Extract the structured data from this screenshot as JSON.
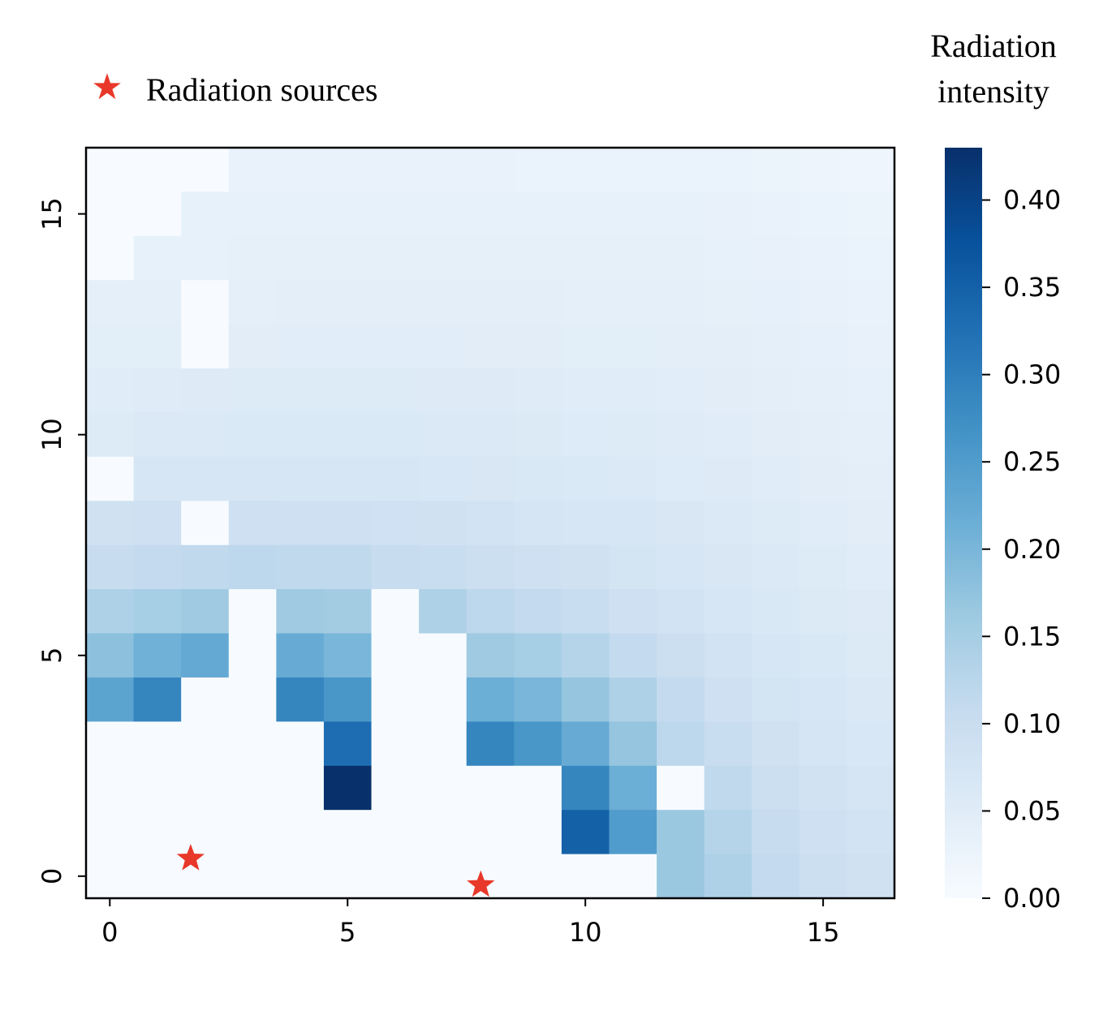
{
  "chart_data": {
    "type": "heatmap",
    "title": "",
    "xlabel": "",
    "ylabel": "",
    "xlim": [
      -0.5,
      16.5
    ],
    "ylim": [
      -0.5,
      16.5
    ],
    "x_ticks": [
      0,
      5,
      10,
      15
    ],
    "y_ticks": [
      0,
      5,
      10,
      15
    ],
    "colormap": "Blues",
    "colorbar": {
      "title_line1": "Radiation",
      "title_line2": "intensity",
      "range": [
        0,
        0.43
      ],
      "ticks": [
        0.0,
        0.05,
        0.1,
        0.15,
        0.2,
        0.25,
        0.3,
        0.35,
        0.4
      ],
      "tick_labels": [
        "0.00",
        "0.05",
        "0.10",
        "0.15",
        "0.20",
        "0.25",
        "0.30",
        "0.35",
        "0.40"
      ]
    },
    "legend": {
      "label": "Radiation sources",
      "marker": "red-star",
      "placement": "top-left, outside plot"
    },
    "sources": [
      {
        "x": 1.7,
        "y": 0.4
      },
      {
        "x": 7.8,
        "y": -0.2
      }
    ],
    "grid_rows_y_descending": [
      {
        "y": 16,
        "values": [
          0.0,
          0.0,
          0.0,
          0.03,
          0.03,
          0.03,
          0.03,
          0.03,
          0.03,
          0.028,
          0.028,
          0.028,
          0.028,
          0.028,
          0.025,
          0.022,
          0.02
        ]
      },
      {
        "y": 15,
        "values": [
          0.0,
          0.0,
          0.035,
          0.035,
          0.035,
          0.035,
          0.035,
          0.035,
          0.035,
          0.035,
          0.035,
          0.035,
          0.035,
          0.033,
          0.03,
          0.027,
          0.025
        ]
      },
      {
        "y": 14,
        "values": [
          0.0,
          0.035,
          0.035,
          0.037,
          0.037,
          0.037,
          0.037,
          0.037,
          0.037,
          0.037,
          0.037,
          0.037,
          0.037,
          0.035,
          0.033,
          0.03,
          0.027
        ]
      },
      {
        "y": 13,
        "values": [
          0.04,
          0.04,
          0.0,
          0.04,
          0.042,
          0.042,
          0.042,
          0.042,
          0.042,
          0.042,
          0.04,
          0.04,
          0.04,
          0.038,
          0.036,
          0.033,
          0.03
        ]
      },
      {
        "y": 12,
        "values": [
          0.045,
          0.045,
          0.0,
          0.046,
          0.047,
          0.047,
          0.047,
          0.047,
          0.046,
          0.046,
          0.045,
          0.045,
          0.044,
          0.042,
          0.04,
          0.036,
          0.033
        ]
      },
      {
        "y": 11,
        "values": [
          0.05,
          0.052,
          0.054,
          0.055,
          0.055,
          0.055,
          0.055,
          0.054,
          0.054,
          0.052,
          0.05,
          0.05,
          0.048,
          0.046,
          0.043,
          0.04,
          0.036
        ]
      },
      {
        "y": 10,
        "values": [
          0.055,
          0.06,
          0.06,
          0.062,
          0.062,
          0.062,
          0.062,
          0.06,
          0.06,
          0.058,
          0.056,
          0.055,
          0.052,
          0.049,
          0.046,
          0.043,
          0.04
        ]
      },
      {
        "y": 9,
        "values": [
          0.0,
          0.07,
          0.07,
          0.07,
          0.072,
          0.072,
          0.072,
          0.068,
          0.066,
          0.064,
          0.062,
          0.06,
          0.057,
          0.053,
          0.05,
          0.046,
          0.042
        ]
      },
      {
        "y": 8,
        "values": [
          0.085,
          0.09,
          0.0,
          0.09,
          0.09,
          0.09,
          0.088,
          0.085,
          0.08,
          0.075,
          0.072,
          0.07,
          0.066,
          0.06,
          0.055,
          0.05,
          0.046
        ]
      },
      {
        "y": 7,
        "values": [
          0.105,
          0.11,
          0.115,
          0.12,
          0.115,
          0.115,
          0.105,
          0.1,
          0.095,
          0.09,
          0.085,
          0.078,
          0.072,
          0.066,
          0.06,
          0.055,
          0.05
        ]
      },
      {
        "y": 6,
        "values": [
          0.14,
          0.15,
          0.16,
          0.0,
          0.16,
          0.155,
          0.0,
          0.14,
          0.12,
          0.11,
          0.1,
          0.09,
          0.08,
          0.072,
          0.065,
          0.058,
          0.053
        ]
      },
      {
        "y": 5,
        "values": [
          0.18,
          0.21,
          0.225,
          0.0,
          0.22,
          0.2,
          0.0,
          0.0,
          0.16,
          0.15,
          0.13,
          0.11,
          0.095,
          0.08,
          0.072,
          0.064,
          0.058
        ]
      },
      {
        "y": 4,
        "values": [
          0.235,
          0.29,
          0.0,
          0.0,
          0.29,
          0.26,
          0.0,
          0.0,
          0.215,
          0.2,
          0.17,
          0.14,
          0.11,
          0.09,
          0.078,
          0.07,
          0.063
        ]
      },
      {
        "y": 3,
        "values": [
          0.0,
          0.0,
          0.0,
          0.0,
          0.0,
          0.33,
          0.0,
          0.0,
          0.29,
          0.26,
          0.22,
          0.17,
          0.12,
          0.1,
          0.085,
          0.075,
          0.068
        ]
      },
      {
        "y": 2,
        "values": [
          0.0,
          0.0,
          0.0,
          0.0,
          0.0,
          0.43,
          0.0,
          0.0,
          0.0,
          0.0,
          0.29,
          0.215,
          0.0,
          0.115,
          0.095,
          0.082,
          0.075
        ]
      },
      {
        "y": 1,
        "values": [
          0.0,
          0.0,
          0.0,
          0.0,
          0.0,
          0.0,
          0.0,
          0.0,
          0.0,
          0.0,
          0.35,
          0.25,
          0.165,
          0.13,
          0.105,
          0.09,
          0.08
        ]
      },
      {
        "y": 0,
        "values": [
          0.0,
          0.0,
          0.0,
          0.0,
          0.0,
          0.0,
          0.0,
          0.0,
          0.0,
          0.0,
          0.0,
          0.0,
          0.165,
          0.14,
          0.11,
          0.095,
          0.085
        ]
      }
    ]
  }
}
